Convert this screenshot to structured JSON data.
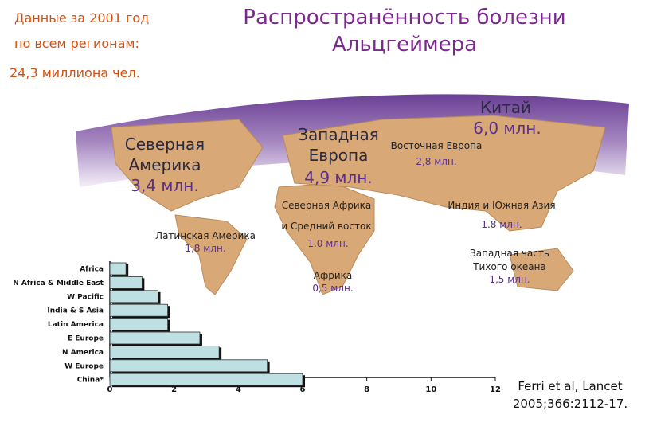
{
  "header": {
    "lines": [
      "Данные за 2001 год",
      "по всем регионам:",
      "24,3 миллиона чел."
    ],
    "title": [
      "Распространённость болезни",
      "Альцгеймера"
    ]
  },
  "map_labels": {
    "china": [
      "Китай",
      "6,0  млн."
    ],
    "n_america": [
      "Северная",
      "Америка",
      "3,4  млн."
    ],
    "w_europe": [
      "Западная",
      "Европа",
      "4,9  млн."
    ],
    "e_europe": [
      "Восточная Европа",
      "2,8  млн."
    ],
    "n_africa": [
      "Северная Африка",
      "и Средний восток",
      "1.0 млн."
    ],
    "india": [
      "Индия и Южная Азия",
      "1.8 млн."
    ],
    "latin": [
      "Латинская Америка",
      "1,8  млн."
    ],
    "africa": [
      "Африка",
      "0,5  млн."
    ],
    "w_pacific": [
      "Западная часть",
      "Тихого океана",
      "1,5  млн."
    ]
  },
  "citation": [
    "Ferri et al, Lancet",
    "2005;366:2112-17."
  ],
  "chart_data": {
    "type": "hbar",
    "categories": [
      "Africa",
      "N Africa & Middle East",
      "W Pacific",
      "India & S Asia",
      "Latin America",
      "E Europe",
      "N America",
      "W Europe",
      "China*"
    ],
    "values": [
      0.5,
      1.0,
      1.5,
      1.8,
      1.8,
      2.8,
      3.4,
      4.9,
      6.0
    ],
    "color": "#bfe0e3",
    "xlim": [
      0,
      12
    ],
    "xticks": [
      0,
      2,
      4,
      6,
      8,
      10,
      12
    ]
  }
}
